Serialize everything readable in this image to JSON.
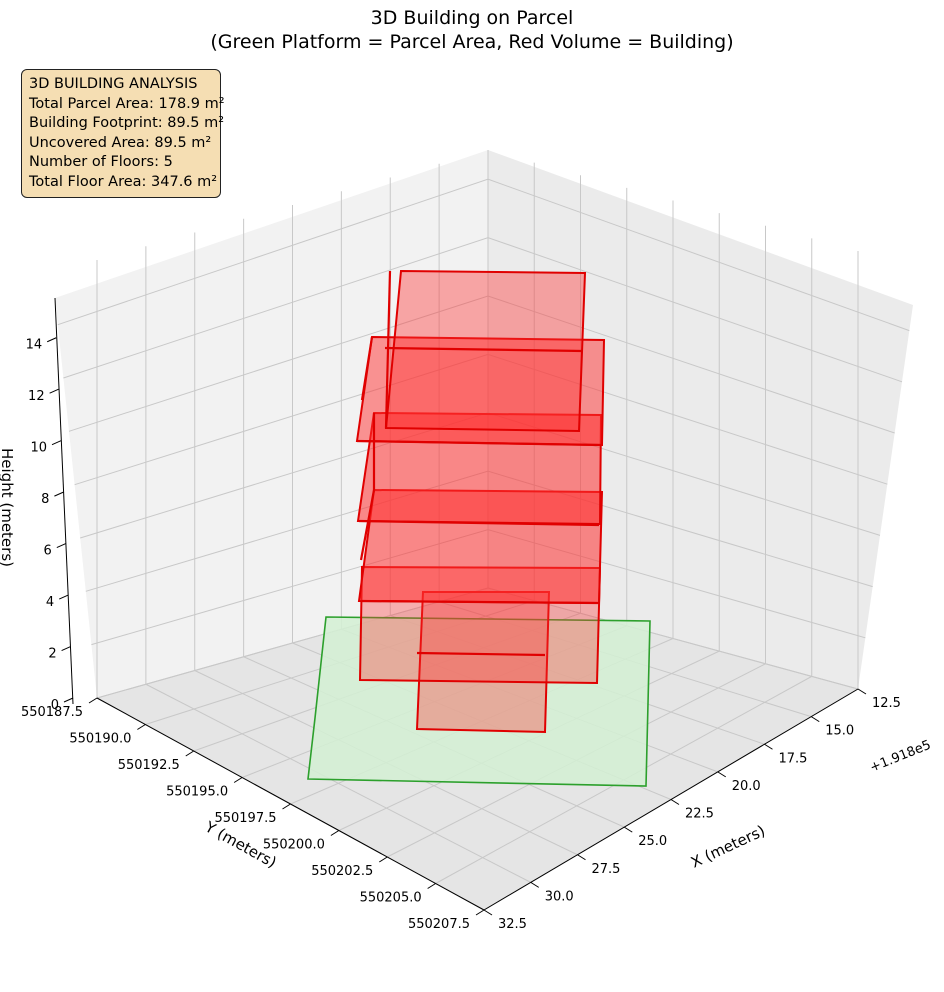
{
  "chart_data": {
    "type": "3d-bar",
    "title": "3D Building on Parcel",
    "subtitle": "(Green Platform = Parcel Area, Red Volume = Building)",
    "xlabel": "X (meters)",
    "ylabel": "Y (meters)",
    "zlabel": "Height (meters)",
    "x_offset_label": "+1.918e5",
    "x_ticks": [
      "12.5",
      "15.0",
      "17.5",
      "20.0",
      "22.5",
      "25.0",
      "27.5",
      "30.0",
      "32.5"
    ],
    "y_ticks": [
      "550187.5",
      "550190.0",
      "550192.5",
      "550195.0",
      "550197.5",
      "550200.0",
      "550202.5",
      "550205.0",
      "550207.5"
    ],
    "z_ticks": [
      "0",
      "2",
      "4",
      "6",
      "8",
      "10",
      "12",
      "14"
    ],
    "xlim": [
      12.5,
      32.5
    ],
    "ylim": [
      550187.5,
      550207.5
    ],
    "zlim": [
      0,
      15
    ],
    "grid": true,
    "parcel": {
      "name": "Parcel Area",
      "color": "#2ca02c",
      "fill": "#d4f0d4",
      "z": 0
    },
    "building": {
      "name": "Building",
      "color": "#e00000",
      "fill": "#ff3030",
      "floors": 5
    }
  },
  "stats": {
    "heading": "3D BUILDING ANALYSIS",
    "lines": [
      "Total Parcel Area: 178.9 m²",
      "Building Footprint: 89.5 m²",
      "Uncovered Area: 89.5 m²",
      "Number of Floors: 5",
      "Total Floor Area: 347.6 m²"
    ]
  }
}
